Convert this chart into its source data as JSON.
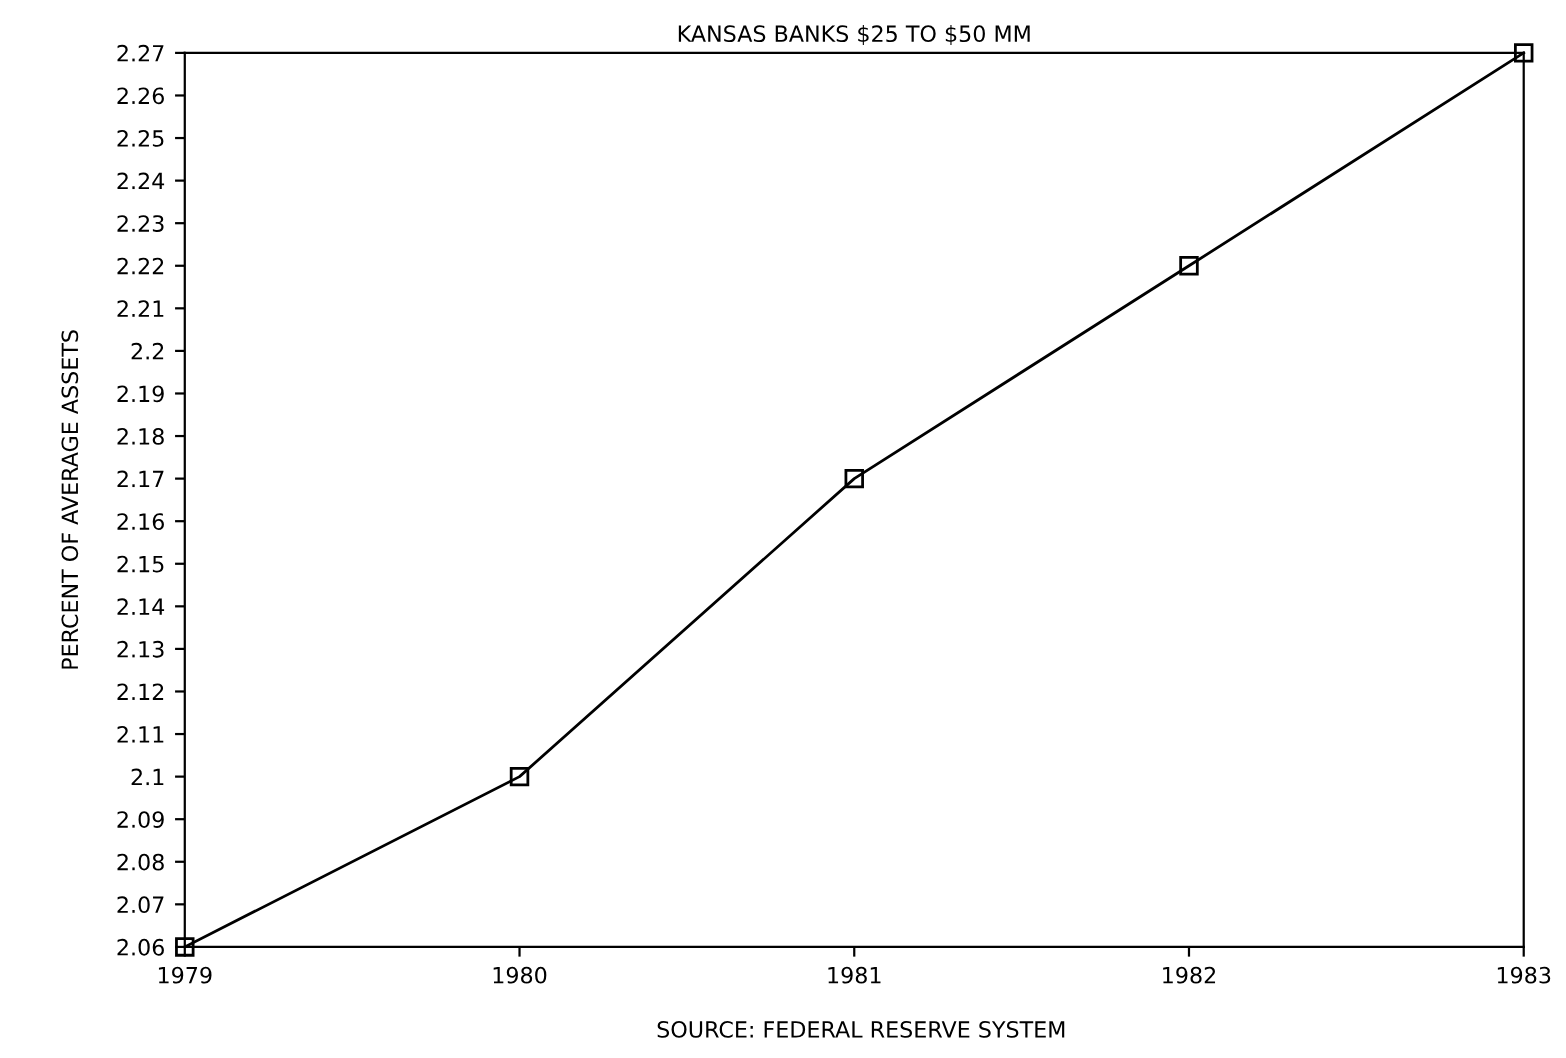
{
  "chart_data": {
    "type": "line",
    "title": "KANSAS BANKS $25 TO $50 MM",
    "ylabel": "PERCENT OF AVERAGE ASSETS",
    "annotations": [
      "SOURCE: FEDERAL RESERVE SYSTEM"
    ],
    "x": [
      1979,
      1980,
      1981,
      1982,
      1983
    ],
    "series": [
      {
        "color": "#000000",
        "values": [
          2.06,
          2.1,
          2.17,
          2.22,
          2.27
        ]
      }
    ],
    "xlim": [
      1979,
      1983
    ],
    "xticks": [
      1979,
      1980,
      1981,
      1982,
      1983
    ],
    "ylim": [
      2.06,
      2.27
    ],
    "yticks": [
      2.06,
      2.07,
      2.08,
      2.09,
      2.1,
      2.11,
      2.12,
      2.13,
      2.14,
      2.15,
      2.16,
      2.17,
      2.18,
      2.19,
      2.2,
      2.21,
      2.22,
      2.23,
      2.24,
      2.25,
      2.26,
      2.27
    ],
    "marker": "square",
    "line_style": "solid",
    "grid": false,
    "legend": false
  }
}
